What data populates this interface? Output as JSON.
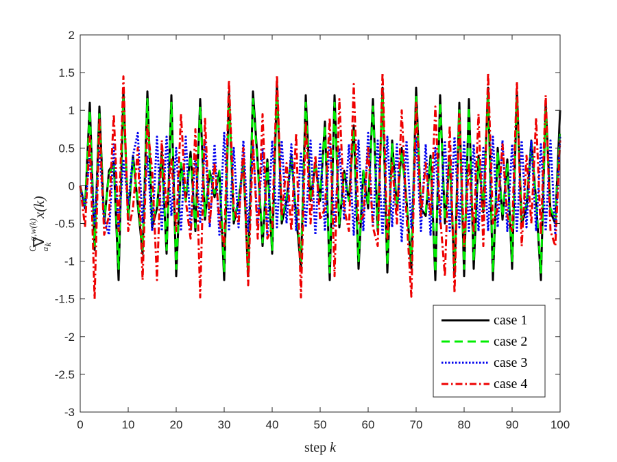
{
  "chart_data": {
    "type": "line",
    "xlabel": "step k",
    "ylabel": "ᴳₐ∇ₖ^{α,w(k)} x(k)",
    "xlim": [
      0,
      100
    ],
    "ylim": [
      -3,
      2
    ],
    "xticks": [
      0,
      10,
      20,
      30,
      40,
      50,
      60,
      70,
      80,
      90,
      100
    ],
    "yticks": [
      -3,
      -2.5,
      -2,
      -1.5,
      -1,
      -0.5,
      0,
      0.5,
      1,
      1.5,
      2
    ],
    "grid": false,
    "legend_position": "bottom-right",
    "series": [
      {
        "name": "case 1",
        "color": "#000000",
        "dash": "solid",
        "x": [
          0,
          1,
          2,
          3,
          4,
          5,
          6,
          7,
          8,
          9,
          10,
          11,
          12,
          13,
          14,
          15,
          16,
          17,
          18,
          19,
          20,
          21,
          22,
          23,
          24,
          25,
          26,
          27,
          28,
          29,
          30,
          31,
          32,
          33,
          34,
          35,
          36,
          37,
          38,
          39,
          40,
          41,
          42,
          43,
          44,
          45,
          46,
          47,
          48,
          49,
          50,
          51,
          52,
          53,
          54,
          55,
          56,
          57,
          58,
          59,
          60,
          61,
          62,
          63,
          64,
          65,
          66,
          67,
          68,
          69,
          70,
          71,
          72,
          73,
          74,
          75,
          76,
          77,
          78,
          79,
          80,
          81,
          82,
          83,
          84,
          85,
          86,
          87,
          88,
          89,
          90,
          91,
          92,
          93,
          94,
          95,
          96,
          97,
          98,
          99,
          100
        ],
        "y": [
          0,
          -0.3,
          1.1,
          -0.85,
          1.05,
          -0.5,
          0.2,
          0.3,
          -1.25,
          1.25,
          -0.45,
          0.4,
          -0.25,
          -0.9,
          1.25,
          -0.55,
          -0.3,
          0.45,
          -0.9,
          1.2,
          -1.2,
          0.3,
          -0.2,
          0.45,
          -0.6,
          1.15,
          -0.45,
          0.2,
          -0.15,
          0.2,
          -1.25,
          1.25,
          -0.5,
          -0.2,
          0.3,
          -1.2,
          1.25,
          0.3,
          -0.8,
          0.35,
          -0.9,
          1.35,
          -0.5,
          -0.2,
          0.4,
          -0.4,
          -1.1,
          1.2,
          -0.2,
          0.3,
          -0.2,
          0.85,
          -1.25,
          1.2,
          -0.55,
          0.2,
          -0.2,
          0.8,
          -1.1,
          0.2,
          -0.3,
          1.15,
          -0.6,
          1.3,
          -1.15,
          0.6,
          -0.3,
          0.5,
          -0.2,
          -1.1,
          1.3,
          -0.3,
          -0.4,
          0.4,
          -1.25,
          1.2,
          -0.5,
          0.4,
          -1.2,
          1.1,
          -1.2,
          1.15,
          -1.1,
          0.4,
          -0.35,
          1.3,
          -1.25,
          0.5,
          -0.45,
          0.35,
          -1.1,
          1.25,
          -0.5,
          -0.3,
          0.6,
          -0.2,
          -1.25,
          1.1,
          -0.35,
          -0.5,
          1.0
        ]
      },
      {
        "name": "case 2",
        "color": "#00ee00",
        "dash": "dashed",
        "x": [
          0,
          1,
          2,
          3,
          4,
          5,
          6,
          7,
          8,
          9,
          10,
          11,
          12,
          13,
          14,
          15,
          16,
          17,
          18,
          19,
          20,
          21,
          22,
          23,
          24,
          25,
          26,
          27,
          28,
          29,
          30,
          31,
          32,
          33,
          34,
          35,
          36,
          37,
          38,
          39,
          40,
          41,
          42,
          43,
          44,
          45,
          46,
          47,
          48,
          49,
          50,
          51,
          52,
          53,
          54,
          55,
          56,
          57,
          58,
          59,
          60,
          61,
          62,
          63,
          64,
          65,
          66,
          67,
          68,
          69,
          70,
          71,
          72,
          73,
          74,
          75,
          76,
          77,
          78,
          79,
          80,
          81,
          82,
          83,
          84,
          85,
          86,
          87,
          88,
          89,
          90,
          91,
          92,
          93,
          94,
          95,
          96,
          97,
          98,
          99,
          100
        ],
        "y": [
          0,
          -0.25,
          1.0,
          -0.8,
          0.95,
          -0.45,
          0.15,
          0.3,
          -1.1,
          1.15,
          -0.4,
          0.35,
          -0.2,
          -0.85,
          1.15,
          -0.5,
          -0.25,
          0.4,
          -0.85,
          1.1,
          -1.1,
          0.3,
          -0.2,
          0.4,
          -0.55,
          1.05,
          -0.4,
          0.2,
          -0.1,
          0.2,
          -1.15,
          1.15,
          -0.45,
          -0.2,
          0.3,
          -1.1,
          1.15,
          0.25,
          -0.75,
          0.3,
          -0.85,
          1.2,
          -0.45,
          -0.15,
          0.35,
          -0.35,
          -1.0,
          1.1,
          -0.2,
          0.3,
          -0.15,
          0.8,
          -1.15,
          1.1,
          -0.5,
          0.15,
          -0.2,
          0.75,
          -1.0,
          0.2,
          -0.25,
          1.05,
          -0.55,
          1.2,
          -1.05,
          0.55,
          -0.25,
          0.45,
          -0.2,
          -1.0,
          1.2,
          -0.25,
          -0.35,
          0.35,
          -1.15,
          1.1,
          -0.45,
          0.35,
          -1.1,
          1.0,
          -1.1,
          1.05,
          -1.0,
          0.35,
          -0.3,
          1.2,
          -1.15,
          0.45,
          -0.4,
          0.3,
          -1.0,
          1.15,
          -0.45,
          -0.25,
          0.55,
          -0.2,
          -1.15,
          1.0,
          -0.3,
          -0.45,
          0.75
        ]
      },
      {
        "name": "case 3",
        "color": "#0000ee",
        "dash": "dotted",
        "x": [
          0,
          1,
          2,
          3,
          4,
          5,
          6,
          7,
          8,
          9,
          10,
          11,
          12,
          13,
          14,
          15,
          16,
          17,
          18,
          19,
          20,
          21,
          22,
          23,
          24,
          25,
          26,
          27,
          28,
          29,
          30,
          31,
          32,
          33,
          34,
          35,
          36,
          37,
          38,
          39,
          40,
          41,
          42,
          43,
          44,
          45,
          46,
          47,
          48,
          49,
          50,
          51,
          52,
          53,
          54,
          55,
          56,
          57,
          58,
          59,
          60,
          61,
          62,
          63,
          64,
          65,
          66,
          67,
          68,
          69,
          70,
          71,
          72,
          73,
          74,
          75,
          76,
          77,
          78,
          79,
          80,
          81,
          82,
          83,
          84,
          85,
          86,
          87,
          88,
          89,
          90,
          91,
          92,
          93,
          94,
          95,
          96,
          97,
          98,
          99,
          100
        ],
        "y": [
          0,
          -0.3,
          0.4,
          -0.5,
          0.5,
          -0.45,
          -0.65,
          0.55,
          -0.6,
          0.35,
          -0.25,
          0.4,
          0.7,
          -0.5,
          0.4,
          -0.6,
          0.65,
          -0.6,
          0.65,
          -0.4,
          0.5,
          -0.6,
          0.65,
          -0.6,
          0.4,
          -0.5,
          0.6,
          -0.55,
          0.55,
          -0.65,
          0.7,
          -0.6,
          0.5,
          -0.55,
          0.6,
          -0.6,
          0.55,
          -0.55,
          0.5,
          -0.65,
          0.6,
          -0.55,
          0.6,
          -0.5,
          0.55,
          -0.6,
          0.45,
          -0.55,
          0.6,
          -0.65,
          0.55,
          -0.6,
          0.65,
          -0.55,
          0.5,
          -0.45,
          0.55,
          -0.65,
          0.6,
          -0.6,
          0.7,
          -0.55,
          0.6,
          -0.65,
          0.65,
          -0.55,
          0.55,
          -0.75,
          0.6,
          -0.55,
          0.65,
          -0.6,
          0.55,
          -0.65,
          0.5,
          -0.5,
          0.6,
          -0.6,
          0.65,
          -0.55,
          0.6,
          -0.6,
          0.55,
          -0.6,
          0.5,
          -0.6,
          0.65,
          -0.55,
          0.6,
          -0.6,
          0.55,
          -0.6,
          0.6,
          -0.55,
          0.6,
          -0.6,
          0.55,
          -0.6,
          0.6,
          -0.65,
          0.65
        ]
      },
      {
        "name": "case 4",
        "color": "#ee0000",
        "dash": "dashdot",
        "x": [
          0,
          1,
          2,
          3,
          4,
          5,
          6,
          7,
          8,
          9,
          10,
          11,
          12,
          13,
          14,
          15,
          16,
          17,
          18,
          19,
          20,
          21,
          22,
          23,
          24,
          25,
          26,
          27,
          28,
          29,
          30,
          31,
          32,
          33,
          34,
          35,
          36,
          37,
          38,
          39,
          40,
          41,
          42,
          43,
          44,
          45,
          46,
          47,
          48,
          49,
          50,
          51,
          52,
          53,
          54,
          55,
          56,
          57,
          58,
          59,
          60,
          61,
          62,
          63,
          64,
          65,
          66,
          67,
          68,
          69,
          70,
          71,
          72,
          73,
          74,
          75,
          76,
          77,
          78,
          79,
          80,
          81,
          82,
          83,
          84,
          85,
          86,
          87,
          88,
          89,
          90,
          91,
          92,
          93,
          94,
          95,
          96,
          97,
          98,
          99,
          100
        ],
        "y": [
          0,
          -0.55,
          0.65,
          -1.5,
          0.9,
          -0.65,
          -0.4,
          0.95,
          -0.6,
          1.45,
          -0.6,
          -0.3,
          0.5,
          -1.25,
          0.8,
          0.2,
          -1.25,
          0.6,
          -0.3,
          0.35,
          -0.6,
          0.95,
          -0.2,
          -0.7,
          0.75,
          -1.48,
          0.9,
          -0.5,
          0.3,
          -0.45,
          -0.8,
          1.4,
          -0.3,
          -0.5,
          0.5,
          -1.32,
          0.6,
          -0.7,
          0.95,
          -0.7,
          -0.55,
          1.47,
          -0.4,
          0.3,
          -0.6,
          0.7,
          -1.48,
          0.85,
          -0.5,
          0.4,
          -0.45,
          -0.3,
          0.9,
          -1.2,
          1.15,
          -0.3,
          -0.6,
          1.35,
          -0.5,
          -0.4,
          0.5,
          -0.55,
          -0.8,
          1.5,
          -0.7,
          0.3,
          -0.5,
          1.0,
          -0.4,
          -1.47,
          1.1,
          -0.4,
          0.3,
          -0.4,
          1.05,
          -0.4,
          -1.2,
          0.8,
          -1.42,
          0.95,
          -0.8,
          0.3,
          -0.6,
          0.95,
          -0.8,
          1.5,
          -0.5,
          -0.3,
          0.55,
          -0.4,
          -0.6,
          1.38,
          -0.8,
          0.4,
          -0.5,
          0.9,
          -0.65,
          1.2,
          -0.6,
          -0.8,
          0.6
        ]
      }
    ]
  }
}
